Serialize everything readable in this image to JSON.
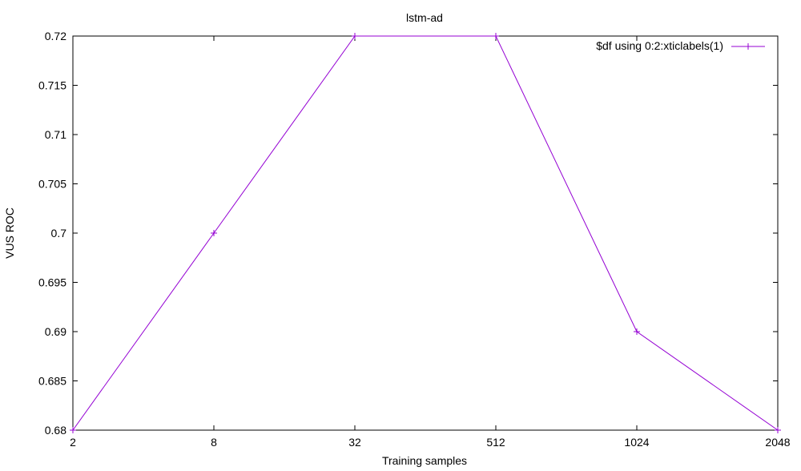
{
  "chart_data": {
    "type": "line",
    "title": "lstm-ad",
    "xlabel": "Training samples",
    "ylabel": "VUS ROC",
    "categories": [
      "2",
      "8",
      "32",
      "512",
      "1024",
      "2048"
    ],
    "series": [
      {
        "name": "$df using 0:2:xticlabels(1)",
        "values": [
          0.68,
          0.7,
          0.72,
          0.72,
          0.69,
          0.68
        ],
        "color": "#9400d3",
        "marker": "plus"
      }
    ],
    "ylim": [
      0.68,
      0.72
    ],
    "yticks": [
      0.68,
      0.685,
      0.69,
      0.695,
      0.7,
      0.705,
      0.71,
      0.715,
      0.72
    ],
    "ytick_labels": [
      "0.68",
      "0.685",
      "0.69",
      "0.695",
      "0.7",
      "0.705",
      "0.71",
      "0.715",
      "0.72"
    ],
    "grid": false,
    "legend_position": "top-right"
  }
}
